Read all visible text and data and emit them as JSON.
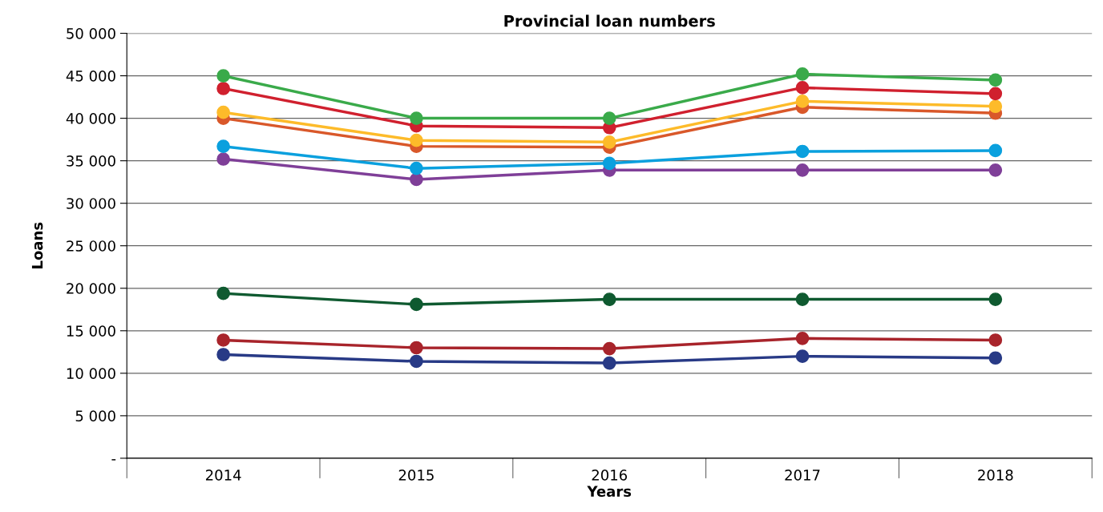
{
  "chart_data": {
    "type": "line",
    "title": "Provincial loan numbers",
    "xlabel": "Years",
    "ylabel": "Loans",
    "categories": [
      "2014",
      "2015",
      "2016",
      "2017",
      "2018"
    ],
    "series": [
      {
        "color": "#3aaa4a",
        "values": [
          45000,
          40000,
          40000,
          45200,
          44500
        ]
      },
      {
        "color": "#d0202e",
        "values": [
          43500,
          39100,
          38900,
          43600,
          42900
        ]
      },
      {
        "color": "#fdbb2a",
        "values": [
          40700,
          37400,
          37200,
          42000,
          41400
        ]
      },
      {
        "color": "#d9582a",
        "values": [
          40000,
          36700,
          36600,
          41300,
          40600
        ]
      },
      {
        "color": "#0aa0de",
        "values": [
          36700,
          34100,
          34700,
          36100,
          36200
        ]
      },
      {
        "color": "#7f3f98",
        "values": [
          35200,
          32800,
          33900,
          33900,
          33900
        ]
      },
      {
        "color": "#0f5a30",
        "values": [
          19400,
          18100,
          18700,
          18700,
          18700
        ]
      },
      {
        "color": "#a8242b",
        "values": [
          13900,
          13000,
          12900,
          14100,
          13900
        ]
      },
      {
        "color": "#283a86",
        "values": [
          12200,
          11400,
          11200,
          12000,
          11800
        ]
      }
    ],
    "ylim": [
      0,
      50000
    ],
    "yticks": [
      {
        "value": 0,
        "label": "-"
      },
      {
        "value": 5000,
        "label": "5 000"
      },
      {
        "value": 10000,
        "label": "10 000"
      },
      {
        "value": 15000,
        "label": "15 000"
      },
      {
        "value": 20000,
        "label": "20 000"
      },
      {
        "value": 25000,
        "label": "25 000"
      },
      {
        "value": 30000,
        "label": "30 000"
      },
      {
        "value": 35000,
        "label": "35 000"
      },
      {
        "value": 40000,
        "label": "40 000"
      },
      {
        "value": 45000,
        "label": "45 000"
      },
      {
        "value": 50000,
        "label": "50 000"
      }
    ],
    "grid": "y",
    "legend": false,
    "marker": "circle",
    "line_style": "solid"
  }
}
